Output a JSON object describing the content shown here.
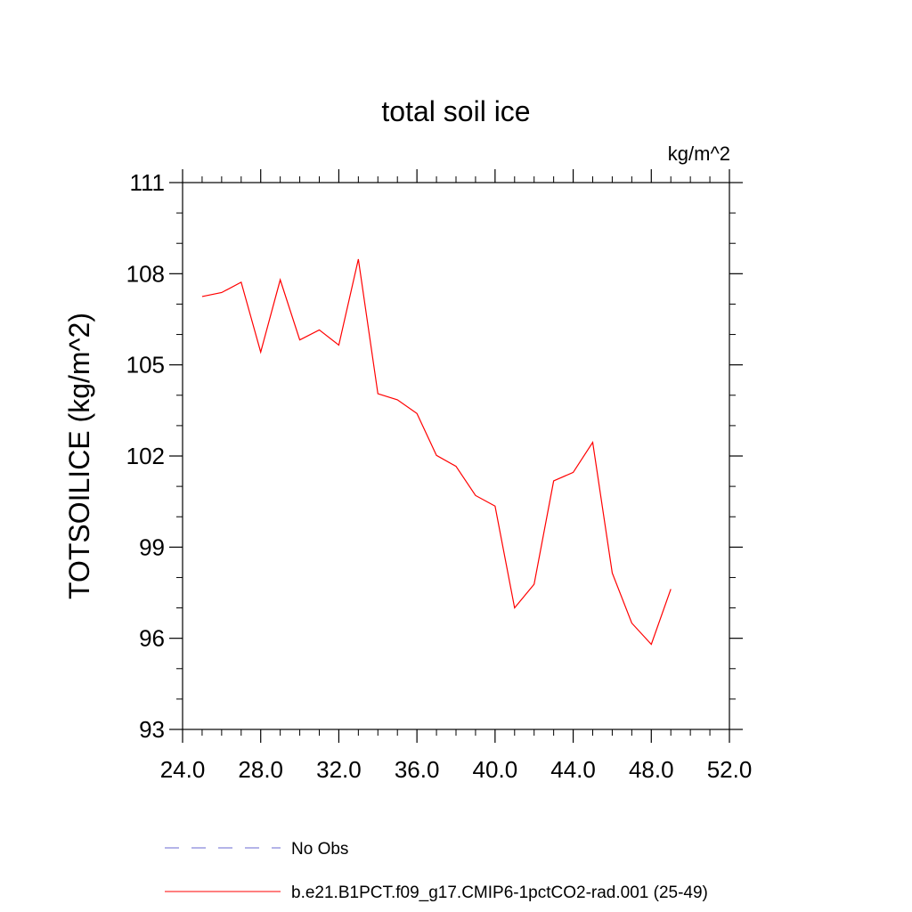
{
  "chart_data": {
    "type": "line",
    "title": "total soil ice",
    "units_label": "kg/m^2",
    "ylabel": "TOTSOILICE  (kg/m^2)",
    "xlabel": "",
    "xlim": [
      24.0,
      52.0
    ],
    "ylim": [
      93,
      111
    ],
    "xticks": [
      "24.0",
      "28.0",
      "32.0",
      "36.0",
      "40.0",
      "44.0",
      "48.0",
      "52.0"
    ],
    "yticks": [
      "93",
      "96",
      "99",
      "102",
      "105",
      "108",
      "111"
    ],
    "grid": false,
    "legend_position": "bottom",
    "series": [
      {
        "name": "b.e21.B1PCT.f09_g17.CMIP6-1pctCO2-rad.001 (25-49)",
        "color": "#ff0000",
        "style": "solid",
        "x": [
          25,
          26,
          27,
          28,
          29,
          30,
          31,
          32,
          33,
          34,
          35,
          36,
          37,
          38,
          39,
          40,
          41,
          42,
          43,
          44,
          45,
          46,
          47,
          48,
          49
        ],
        "y": [
          107.25,
          107.38,
          107.72,
          105.42,
          107.8,
          105.82,
          106.15,
          105.65,
          108.48,
          104.05,
          103.85,
          103.4,
          102.02,
          101.66,
          100.7,
          100.35,
          97.0,
          97.78,
          101.18,
          101.46,
          102.45,
          98.15,
          96.5,
          95.8,
          97.62
        ]
      }
    ],
    "legend": [
      {
        "label": "No Obs",
        "color": "#6a6ad0",
        "style": "dashed"
      },
      {
        "label": "b.e21.B1PCT.f09_g17.CMIP6-1pctCO2-rad.001 (25-49)",
        "color": "#ff0000",
        "style": "solid"
      }
    ]
  }
}
